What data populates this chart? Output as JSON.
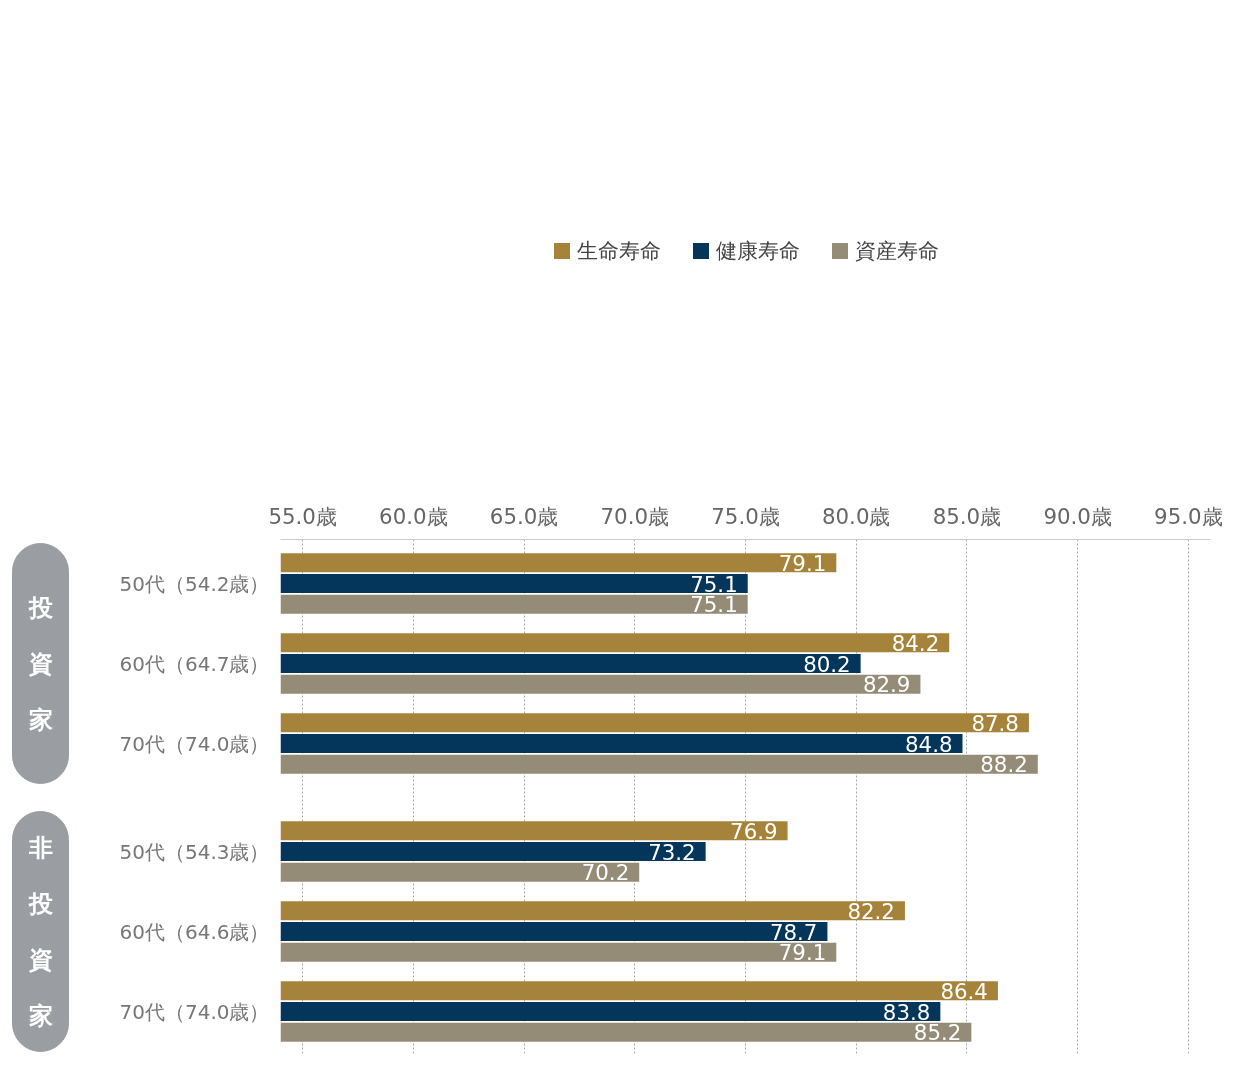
{
  "chart_data": {
    "type": "bar",
    "orientation": "horizontal",
    "categories": [
      "50代（54.2歳）",
      "60代（64.7歳）",
      "70代（74.0歳）",
      "50代（54.3歳）",
      "60代（64.6歳）",
      "70代（74.0歳）"
    ],
    "series": [
      {
        "name": "生命寿命",
        "color": "#a6833a",
        "values": [
          79.1,
          84.2,
          87.8,
          76.9,
          82.2,
          86.4
        ]
      },
      {
        "name": "健康寿命",
        "color": "#03365a",
        "values": [
          75.1,
          80.2,
          84.8,
          73.2,
          78.7,
          83.8
        ]
      },
      {
        "name": "資産寿命",
        "color": "#958c78",
        "values": [
          75.1,
          82.9,
          88.2,
          70.2,
          79.1,
          85.2
        ]
      }
    ],
    "data_labels": true,
    "xlim": [
      54.0,
      96.0
    ],
    "xticks": [
      {
        "value": 55,
        "label": "55.0歳"
      },
      {
        "value": 60,
        "label": "60.0歳"
      },
      {
        "value": 65,
        "label": "65.0歳"
      },
      {
        "value": 70,
        "label": "70.0歳"
      },
      {
        "value": 75,
        "label": "75.0歳"
      },
      {
        "value": 80,
        "label": "80.0歳"
      },
      {
        "value": 85,
        "label": "85.0歳"
      },
      {
        "value": 90,
        "label": "90.0歳"
      },
      {
        "value": 95,
        "label": "95.0歳"
      }
    ],
    "grid": "x",
    "legend": "top",
    "annotations": [
      "投資家",
      "非投資家"
    ]
  }
}
